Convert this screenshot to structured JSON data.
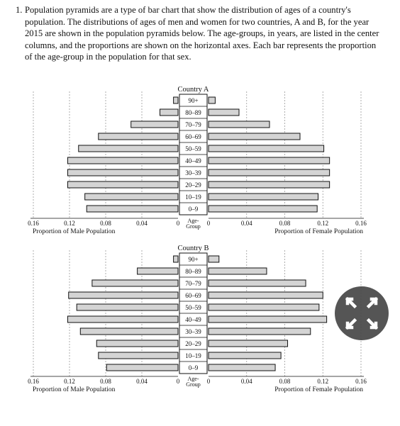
{
  "question": {
    "number": "1.",
    "text": "Population pyramids are a type of bar chart that show the distribution of ages of a country's population. The distributions of ages of men and women for two countries, A and B, for the year 2015 are shown in the population pyramids below. The age-groups, in years, are listed in the center columns, and the proportions are shown on the horizontal axes. Each bar represents the proportion of the age-group in the population for that sex."
  },
  "chart_data": [
    {
      "type": "bar",
      "title": "Country A",
      "categories": [
        "90+",
        "80–89",
        "70–79",
        "60–69",
        "50–59",
        "40–49",
        "30–39",
        "20–29",
        "10–19",
        "0–9"
      ],
      "series": [
        {
          "name": "Proportion of Male Population",
          "values": [
            0.005,
            0.02,
            0.052,
            0.088,
            0.11,
            0.122,
            0.122,
            0.122,
            0.103,
            0.101
          ]
        },
        {
          "name": "Proportion of Female Population",
          "values": [
            0.007,
            0.032,
            0.064,
            0.096,
            0.121,
            0.127,
            0.127,
            0.127,
            0.115,
            0.114
          ]
        }
      ],
      "center_label": "Age-\nGroup",
      "left_ticks": [
        "0.16",
        "0.12",
        "0.08",
        "0.04",
        "0"
      ],
      "right_ticks": [
        "0",
        "0.04",
        "0.08",
        "0.12",
        "0.16"
      ],
      "xlabel_left": "Proportion of Male Population",
      "xlabel_right": "Proportion of Female Population",
      "xlim": [
        0,
        0.16
      ],
      "grid": true
    },
    {
      "type": "bar",
      "title": "Country B",
      "categories": [
        "90+",
        "80–89",
        "70–79",
        "60–69",
        "50–59",
        "40–49",
        "30–39",
        "20–29",
        "10–19",
        "0–9"
      ],
      "series": [
        {
          "name": "Proportion of Male Population",
          "values": [
            0.005,
            0.045,
            0.095,
            0.121,
            0.112,
            0.122,
            0.108,
            0.09,
            0.088,
            0.079
          ]
        },
        {
          "name": "Proportion of Female Population",
          "values": [
            0.011,
            0.061,
            0.102,
            0.12,
            0.116,
            0.124,
            0.107,
            0.083,
            0.076,
            0.07
          ]
        }
      ],
      "center_label": "Age-\nGroup",
      "left_ticks": [
        "0.16",
        "0.12",
        "0.08",
        "0.04",
        "0"
      ],
      "right_ticks": [
        "0",
        "0.04",
        "0.08",
        "0.12",
        "0.16"
      ],
      "xlabel_left": "Proportion of Male Population",
      "xlabel_right": "Proportion of Female Population",
      "xlim": [
        0,
        0.16
      ],
      "grid": true
    }
  ],
  "expand_button": {
    "icon": "expand-arrows-icon",
    "color": "#464646"
  },
  "colors": {
    "bar_fill": "#d4d4d4",
    "bar_stroke": "#111111",
    "grid": "#9a9a9a"
  }
}
